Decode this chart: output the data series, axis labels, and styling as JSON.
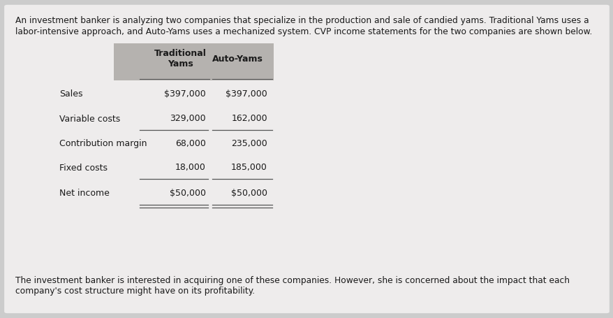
{
  "bg_color": "#cccccc",
  "card_color": "#eeecec",
  "header_bg": "#b5b2af",
  "intro_text_line1": "An investment banker is analyzing two companies that specialize in the production and sale of candied yams. Traditional Yams uses a",
  "intro_text_line2": "labor-intensive approach, and Auto-Yams uses a mechanized system. CVP income statements for the two companies are shown below.",
  "footer_text_line1": "The investment banker is interested in acquiring one of these companies. However, she is concerned about the impact that each",
  "footer_text_line2": "company's cost structure might have on its profitability.",
  "col_header_1": "Traditional",
  "col_header_2": "Yams",
  "col_header_3": "Auto-Yams",
  "rows": [
    {
      "label": "Sales",
      "trad": "$397,000",
      "auto": "$397,000",
      "underline_above": false,
      "underline_below": false,
      "double_below": false
    },
    {
      "label": "Variable costs",
      "trad": "329,000",
      "auto": "162,000",
      "underline_above": false,
      "underline_below": true,
      "double_below": false
    },
    {
      "label": "Contribution margin",
      "trad": "68,000",
      "auto": "235,000",
      "underline_above": false,
      "underline_below": false,
      "double_below": false
    },
    {
      "label": "Fixed costs",
      "trad": "18,000",
      "auto": "185,000",
      "underline_above": false,
      "underline_below": true,
      "double_below": false
    },
    {
      "label": "Net income",
      "trad": "$50,000",
      "auto": "$50,000",
      "underline_above": false,
      "underline_below": true,
      "double_below": true
    }
  ],
  "text_color": "#1a1a1a",
  "line_color": "#555555",
  "font_size_intro": 8.8,
  "font_size_table": 9.0,
  "font_size_header": 9.0
}
